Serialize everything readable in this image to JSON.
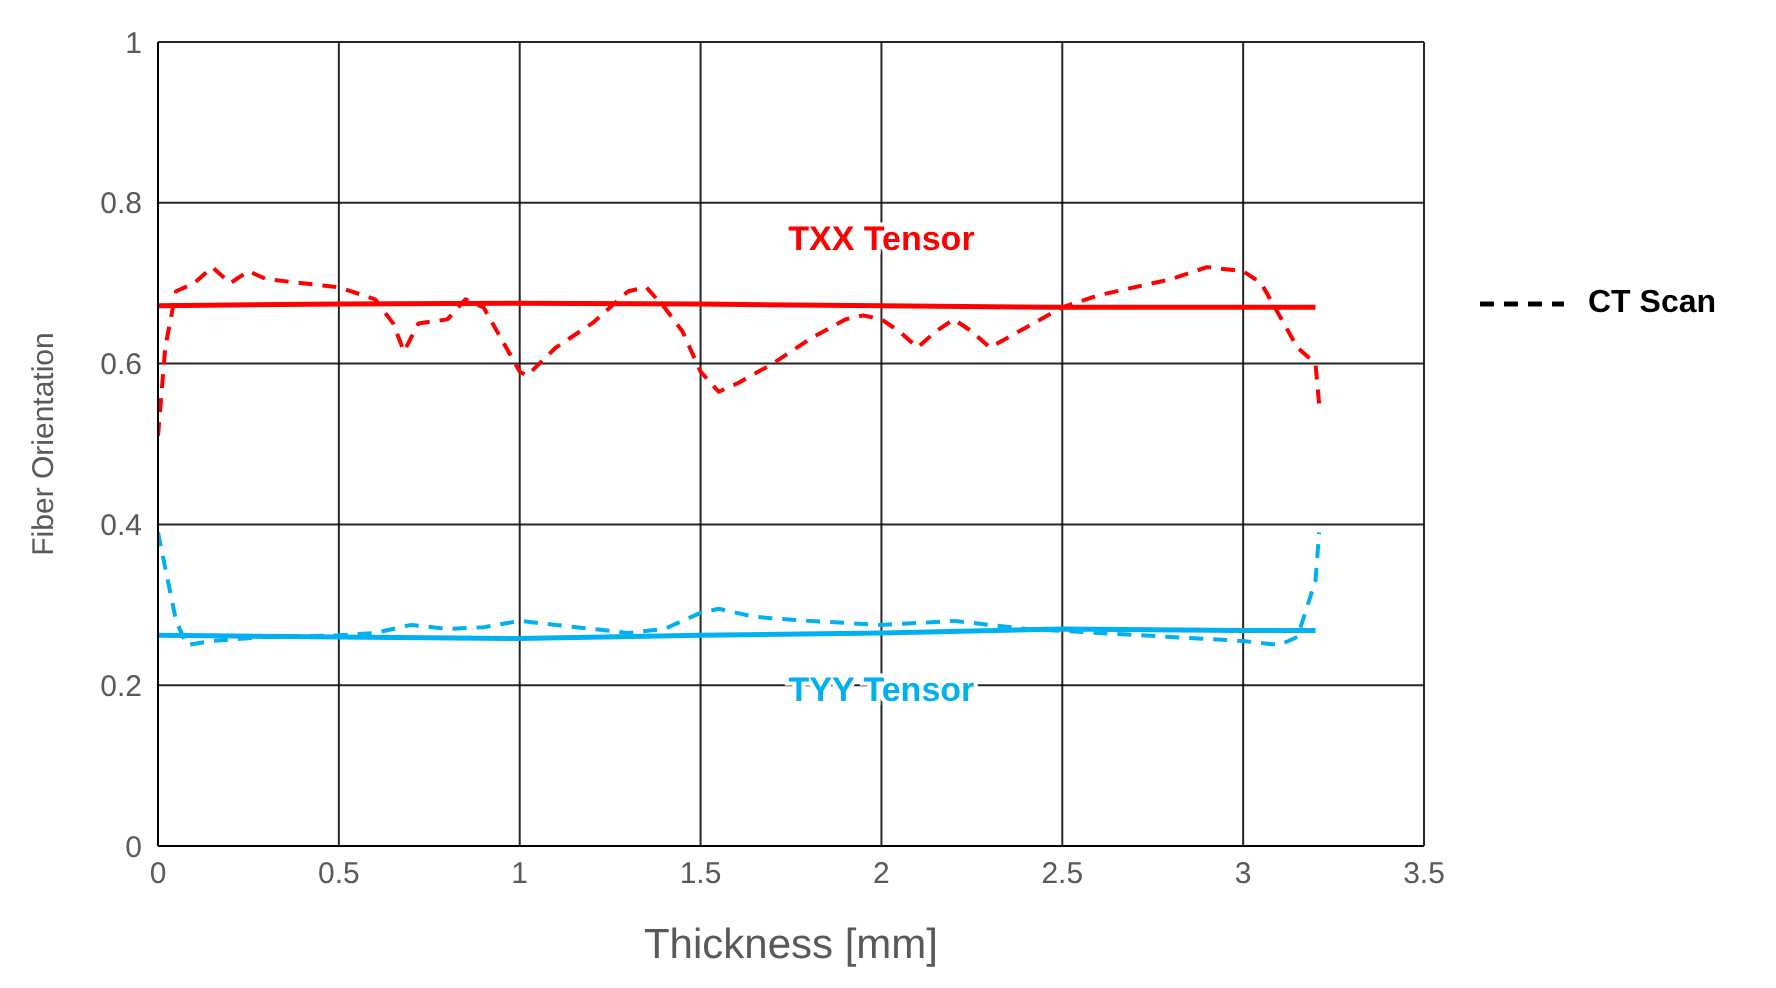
{
  "chart_data": {
    "type": "line",
    "xlabel": "Thickness [mm]",
    "ylabel": "Fiber Orientation",
    "xlim": [
      0,
      3.5
    ],
    "xticks": [
      0,
      0.5,
      1,
      1.5,
      2,
      2.5,
      3,
      3.5
    ],
    "ylim": [
      0,
      1
    ],
    "yticks": [
      0,
      0.2,
      0.4,
      0.6,
      0.8,
      1
    ],
    "grid": true,
    "marker": "none",
    "series": [
      {
        "name": "TXX Tensor",
        "color": "#ff0000",
        "line_style": "solid",
        "x": [
          0,
          0.5,
          1,
          1.5,
          2,
          2.5,
          3,
          3.2
        ],
        "values": [
          0.672,
          0.674,
          0.675,
          0.674,
          0.672,
          0.67,
          0.67,
          0.67
        ]
      },
      {
        "color": "#ff0000",
        "line_style": "dashed",
        "x": [
          0,
          0.02,
          0.05,
          0.1,
          0.15,
          0.2,
          0.25,
          0.3,
          0.4,
          0.5,
          0.6,
          0.65,
          0.68,
          0.72,
          0.8,
          0.85,
          0.9,
          1.0,
          1.02,
          1.1,
          1.2,
          1.3,
          1.35,
          1.4,
          1.45,
          1.5,
          1.55,
          1.6,
          1.7,
          1.8,
          1.9,
          1.95,
          2.0,
          2.05,
          2.1,
          2.15,
          2.2,
          2.25,
          2.3,
          2.4,
          2.5,
          2.6,
          2.7,
          2.8,
          2.9,
          3.0,
          3.05,
          3.1,
          3.15,
          3.2,
          3.21
        ],
        "values": [
          0.51,
          0.62,
          0.69,
          0.7,
          0.72,
          0.7,
          0.715,
          0.705,
          0.7,
          0.695,
          0.68,
          0.65,
          0.615,
          0.65,
          0.655,
          0.68,
          0.67,
          0.59,
          0.585,
          0.62,
          0.65,
          0.69,
          0.695,
          0.67,
          0.64,
          0.59,
          0.565,
          0.575,
          0.6,
          0.63,
          0.655,
          0.66,
          0.655,
          0.64,
          0.62,
          0.64,
          0.655,
          0.64,
          0.62,
          0.645,
          0.67,
          0.685,
          0.695,
          0.705,
          0.72,
          0.715,
          0.7,
          0.66,
          0.62,
          0.6,
          0.55
        ]
      },
      {
        "name": "TYY Tensor",
        "color": "#00b0f0",
        "line_style": "solid",
        "x": [
          0,
          0.5,
          1,
          1.5,
          2,
          2.5,
          3,
          3.2
        ],
        "values": [
          0.262,
          0.26,
          0.258,
          0.262,
          0.265,
          0.27,
          0.268,
          0.268
        ]
      },
      {
        "color": "#00b0f0",
        "line_style": "dashed",
        "x": [
          0,
          0.05,
          0.08,
          0.15,
          0.3,
          0.5,
          0.6,
          0.7,
          0.8,
          0.9,
          1.0,
          1.1,
          1.2,
          1.3,
          1.4,
          1.5,
          1.55,
          1.65,
          1.8,
          2.0,
          2.2,
          2.4,
          2.6,
          2.8,
          3.0,
          3.1,
          3.15,
          3.2,
          3.21
        ],
        "values": [
          0.39,
          0.28,
          0.25,
          0.255,
          0.26,
          0.262,
          0.265,
          0.275,
          0.27,
          0.272,
          0.28,
          0.275,
          0.27,
          0.265,
          0.27,
          0.29,
          0.295,
          0.285,
          0.28,
          0.275,
          0.28,
          0.27,
          0.265,
          0.26,
          0.255,
          0.25,
          0.26,
          0.33,
          0.39
        ]
      }
    ],
    "annotations": [
      "CT Scan"
    ]
  }
}
